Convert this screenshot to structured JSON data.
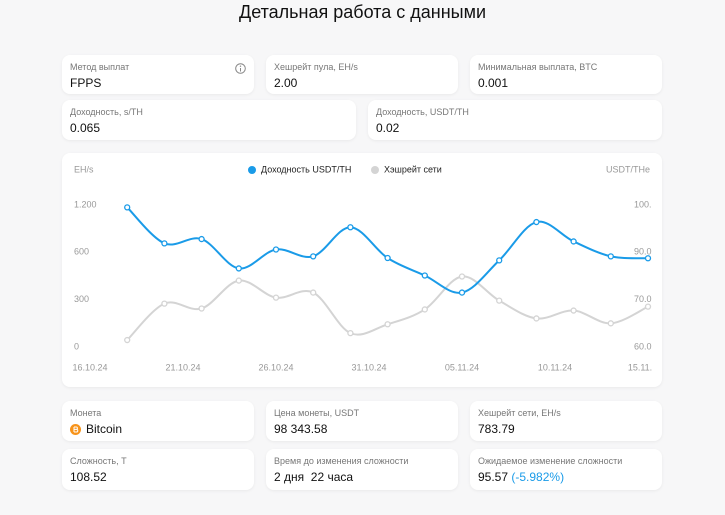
{
  "title": "Детальная работа с данными",
  "cards": [
    {
      "label": "Метод выплат",
      "value": "FPPS"
    },
    {
      "label": "Хешрейт пула, EH/s",
      "value": "2.00"
    },
    {
      "label": "Минимальная выплата, BTC",
      "value": "0.001"
    },
    {
      "label": "Доходность, s/TH",
      "value": "0.065"
    },
    {
      "label": "Доходность, USDT/TH",
      "value": "0.02"
    }
  ],
  "chart_data": {
    "type": "line",
    "y_label": "EH/s",
    "y2_label": "USDT/THe",
    "x": [
      "18.10.24",
      "20.10.24",
      "22.10.24",
      "24.10.24",
      "26.10.24",
      "28.10.24",
      "30.10.24",
      "01.11.24",
      "03.11.24",
      "05.11.24",
      "07.11.24",
      "09.11.24",
      "11.11.24",
      "13.11.24",
      "15.11.24"
    ],
    "xlim": [
      "16.10.24",
      "15.11.24"
    ],
    "xticks": [
      "16.10.24",
      "21.10.24",
      "26.10.24",
      "31.10.24",
      "05.11.24",
      {
        "value": "10.11.24",
        "label": "10.11.24"
      },
      {
        "value": "15.11.24",
        "label": "15.11."
      }
    ],
    "ylim": [
      0,
      1200
    ],
    "yticks": [
      0,
      300,
      600,
      {
        "value": 1200,
        "label": "1.200"
      }
    ],
    "y2lim": [
      60,
      100
    ],
    "y2ticks": [
      {
        "value": 60,
        "label": "60.0"
      },
      {
        "value": 70,
        "label": "70.0"
      },
      {
        "value": 90,
        "label": "90.0"
      },
      {
        "value": 100,
        "label": "100."
      }
    ],
    "series": [
      {
        "name": "Доходность USDT/TH",
        "color": "#1a9be8",
        "axis": "y2",
        "values": [
          99.5,
          91.9,
          92.8,
          83.2,
          90.6,
          88.3,
          95.3,
          87.6,
          80.2,
          73.0,
          86.6,
          96.4,
          92.3,
          88.3,
          87.5
        ]
      },
      {
        "name": "Хэшрейт сети",
        "color": "#d4d4d4",
        "values": [
          44,
          275,
          244,
          421,
          313,
          345,
          88,
          144,
          238,
          447,
          294,
          181,
          231,
          150,
          256
        ]
      }
    ]
  },
  "stats": [
    {
      "label": "Монета",
      "value": "Bitcoin"
    },
    {
      "label": "Цена монеты, USDT",
      "value": "98 343.58"
    },
    {
      "label": "Хешрейт сети, EH/s",
      "value": "783.79"
    },
    {
      "label": "Сложность, T",
      "value": "108.52"
    },
    {
      "label": "Время до изменения сложности",
      "value": "2 дня  22 часа"
    },
    {
      "label": "Ожидаемое изменение сложности",
      "value": "95.57",
      "change": "(-5.982%)"
    }
  ]
}
